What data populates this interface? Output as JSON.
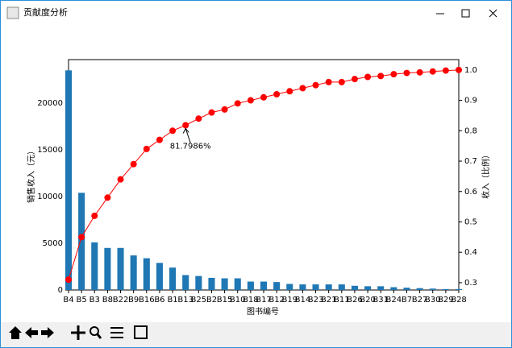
{
  "window": {
    "title": "贡献度分析"
  },
  "chart_data": {
    "type": "bar",
    "categories": [
      "B4",
      "B5",
      "B3",
      "B8",
      "B22",
      "B9",
      "B16",
      "B6",
      "B1",
      "B13",
      "B25",
      "B2",
      "B15",
      "B10",
      "B18",
      "B17",
      "B12",
      "B19",
      "B14",
      "B23",
      "B21",
      "B11",
      "B26",
      "B20",
      "B31",
      "B24",
      "B7",
      "B27",
      "B30",
      "B29",
      "B28"
    ],
    "series": [
      {
        "type": "bar",
        "color": "#1f77b4",
        "values": [
          23500,
          10400,
          5100,
          4500,
          4500,
          3700,
          3400,
          2900,
          2400,
          1600,
          1500,
          1300,
          1250,
          1250,
          900,
          900,
          850,
          650,
          600,
          600,
          600,
          600,
          450,
          400,
          400,
          300,
          250,
          200,
          150,
          100,
          100
        ]
      },
      {
        "type": "line",
        "axis": "y2",
        "color": "#ff0000",
        "values": [
          0.31,
          0.45,
          0.52,
          0.58,
          0.64,
          0.69,
          0.74,
          0.77,
          0.8,
          0.818,
          0.84,
          0.86,
          0.87,
          0.89,
          0.9,
          0.91,
          0.92,
          0.93,
          0.94,
          0.95,
          0.96,
          0.96,
          0.97,
          0.977,
          0.98,
          0.986,
          0.99,
          0.992,
          0.995,
          0.998,
          1
        ]
      }
    ],
    "xlabel": "图书编号",
    "ylabel": "销售收入（元）",
    "y2label": "收入（比例）",
    "ylim": [
      0,
      24650
    ],
    "yticks": [
      0,
      5000,
      10000,
      15000,
      20000
    ],
    "y2lim": [
      0.276,
      1.034
    ],
    "y2ticks": [
      0.3,
      0.4,
      0.5,
      0.6,
      0.7,
      0.8,
      0.9,
      {
        "value": 1,
        "label": "1.0"
      }
    ],
    "annotation": {
      "text": "81.7986%",
      "category_index": 9
    }
  }
}
